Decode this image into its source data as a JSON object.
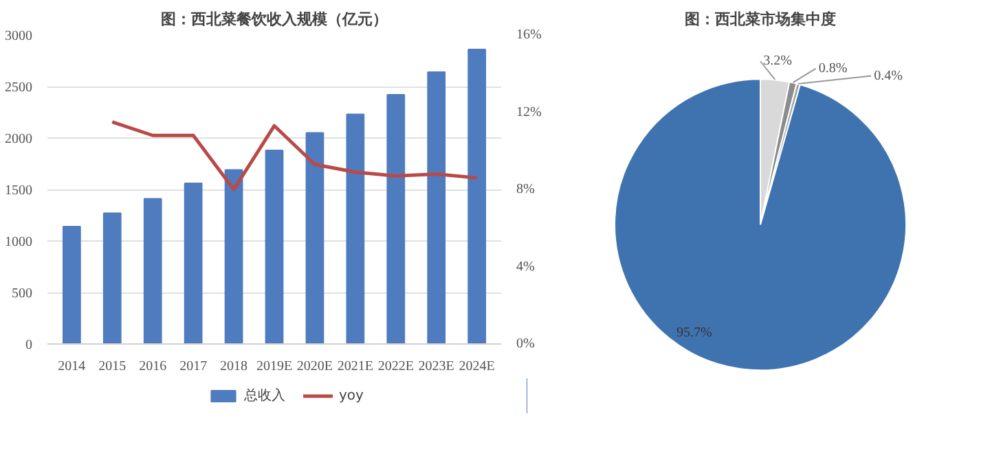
{
  "chart_data": [
    {
      "type": "bar",
      "title": "图：西北菜餐饮收入规模（亿元）",
      "categories": [
        "2014",
        "2015",
        "2016",
        "2017",
        "2018",
        "2019E",
        "2020E",
        "2021E",
        "2022E",
        "2023E",
        "2024E"
      ],
      "series": [
        {
          "name": "总收入",
          "type": "bar",
          "color": "#4f7bbf",
          "values": [
            1140,
            1270,
            1410,
            1560,
            1690,
            1880,
            2050,
            2230,
            2420,
            2640,
            2860
          ]
        },
        {
          "name": "yoy",
          "type": "line",
          "axis": "y2",
          "color": "#b94a48",
          "values": [
            null,
            11.5,
            10.8,
            10.8,
            8.0,
            11.3,
            9.3,
            8.9,
            8.7,
            8.8,
            8.6
          ]
        }
      ],
      "ylim": [
        0,
        3000
      ],
      "yticks": [
        0,
        500,
        1000,
        1500,
        2000,
        2500,
        3000
      ],
      "y2lim": [
        0,
        16
      ],
      "y2ticks": [
        {
          "value": 0,
          "label": "0%"
        },
        {
          "value": 4,
          "label": "4%"
        },
        {
          "value": 8,
          "label": "8%"
        },
        {
          "value": 12,
          "label": "12%"
        },
        {
          "value": 16,
          "label": "16%"
        }
      ],
      "grid": "y",
      "legend": "bottom"
    },
    {
      "type": "pie",
      "title": "图：西北菜市场集中度",
      "categories": [
        null,
        null,
        null,
        null
      ],
      "values": [
        3.2,
        0.8,
        0.4,
        95.7
      ],
      "colors": [
        "#d9d9d9",
        "#8c8c8c",
        "#a6a6a6",
        "#3f73b0"
      ],
      "value_labels": [
        "3.2%",
        "0.8%",
        "0.4%",
        "95.7%"
      ]
    }
  ]
}
